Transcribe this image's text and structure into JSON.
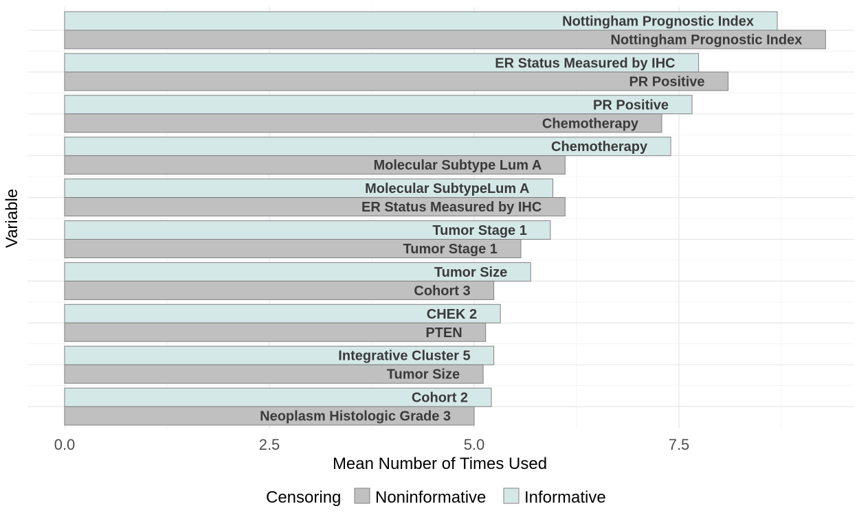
{
  "chart_data": {
    "type": "bar",
    "orientation": "horizontal",
    "xlabel": "Mean Number of Times Used",
    "ylabel": "Variable",
    "xlim": [
      0,
      9.6
    ],
    "xticks": [
      0,
      2.5,
      5,
      7.5
    ],
    "xtick_labels": [
      "0.0",
      "2.5",
      "5.0",
      "7.5"
    ],
    "grid": true,
    "legend": {
      "title": "Censoring",
      "position": "bottom",
      "entries": [
        {
          "name": "Noninformative",
          "color": "#c0c0c0"
        },
        {
          "name": "Informative",
          "color": "#d5e8e8"
        }
      ]
    },
    "series": [
      {
        "name": "Informative",
        "color": "#d5e8e8",
        "labels": [
          "Nottingham Prognostic Index",
          "ER Status Measured by IHC",
          "PR Positive",
          "Chemotherapy",
          "Molecular SubtypeLum A",
          "Tumor Stage 1",
          "Tumor Size",
          "CHEK 2",
          "Integrative Cluster 5",
          "Cohort 2"
        ],
        "values": [
          8.7,
          7.74,
          7.66,
          7.4,
          5.96,
          5.93,
          5.69,
          5.32,
          5.24,
          5.21
        ]
      },
      {
        "name": "Noninformative",
        "color": "#c0c0c0",
        "labels": [
          "Nottingham Prognostic Index",
          "PR Positive",
          "Chemotherapy",
          "Molecular Subtype Lum A",
          "ER Status Measured by IHC",
          "Tumor Stage 1",
          "Cohort 3",
          "PTEN",
          "Tumor Size",
          "Neoplasm Histologic Grade 3"
        ],
        "values": [
          9.29,
          8.1,
          7.29,
          6.11,
          6.11,
          5.57,
          5.24,
          5.14,
          5.11,
          5.0
        ]
      }
    ]
  }
}
